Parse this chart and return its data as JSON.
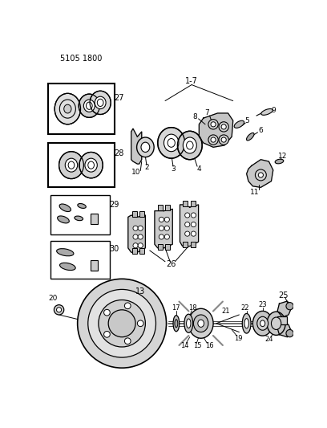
{
  "title": "5105 1800",
  "bg_color": "#ffffff",
  "fig_width": 4.08,
  "fig_height": 5.33,
  "dpi": 100
}
